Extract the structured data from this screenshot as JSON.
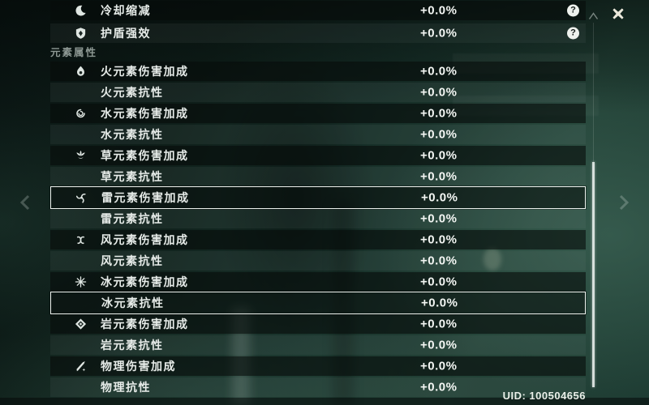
{
  "section_header": "元素属性",
  "rows": [
    {
      "id": "cooldown-reduction",
      "label": "冷却缩减",
      "value": "+0.0%",
      "icon": "cooldown-icon",
      "help": true,
      "shade": "dark",
      "highlighted": false
    },
    {
      "id": "shield-strength",
      "label": "护盾强效",
      "value": "+0.0%",
      "icon": "shield-icon",
      "help": true,
      "shade": "light",
      "highlighted": false
    },
    {
      "id": "pyro-dmg-bonus",
      "label": "火元素伤害加成",
      "value": "+0.0%",
      "icon": "pyro-icon",
      "help": false,
      "shade": "dark",
      "highlighted": false
    },
    {
      "id": "pyro-res",
      "label": "火元素抗性",
      "value": "+0.0%",
      "icon": null,
      "help": false,
      "shade": "light",
      "highlighted": false
    },
    {
      "id": "hydro-dmg-bonus",
      "label": "水元素伤害加成",
      "value": "+0.0%",
      "icon": "hydro-icon",
      "help": false,
      "shade": "dark",
      "highlighted": false
    },
    {
      "id": "hydro-res",
      "label": "水元素抗性",
      "value": "+0.0%",
      "icon": null,
      "help": false,
      "shade": "light",
      "highlighted": false
    },
    {
      "id": "dendro-dmg-bonus",
      "label": "草元素伤害加成",
      "value": "+0.0%",
      "icon": "dendro-icon",
      "help": false,
      "shade": "dark",
      "highlighted": false
    },
    {
      "id": "dendro-res",
      "label": "草元素抗性",
      "value": "+0.0%",
      "icon": null,
      "help": false,
      "shade": "light",
      "highlighted": false
    },
    {
      "id": "electro-dmg-bonus",
      "label": "雷元素伤害加成",
      "value": "+0.0%",
      "icon": "electro-icon",
      "help": false,
      "shade": "dark",
      "highlighted": true
    },
    {
      "id": "electro-res",
      "label": "雷元素抗性",
      "value": "+0.0%",
      "icon": null,
      "help": false,
      "shade": "light",
      "highlighted": false
    },
    {
      "id": "anemo-dmg-bonus",
      "label": "风元素伤害加成",
      "value": "+0.0%",
      "icon": "anemo-icon",
      "help": false,
      "shade": "dark",
      "highlighted": false
    },
    {
      "id": "anemo-res",
      "label": "风元素抗性",
      "value": "+0.0%",
      "icon": null,
      "help": false,
      "shade": "light",
      "highlighted": false
    },
    {
      "id": "cryo-dmg-bonus",
      "label": "冰元素伤害加成",
      "value": "+0.0%",
      "icon": "cryo-icon",
      "help": false,
      "shade": "dark",
      "highlighted": false
    },
    {
      "id": "cryo-res",
      "label": "冰元素抗性",
      "value": "+0.0%",
      "icon": null,
      "help": false,
      "shade": "light",
      "highlighted": true
    },
    {
      "id": "geo-dmg-bonus",
      "label": "岩元素伤害加成",
      "value": "+0.0%",
      "icon": "geo-icon",
      "help": false,
      "shade": "dark",
      "highlighted": false
    },
    {
      "id": "geo-res",
      "label": "岩元素抗性",
      "value": "+0.0%",
      "icon": null,
      "help": false,
      "shade": "light",
      "highlighted": false
    },
    {
      "id": "physical-dmg-bonus",
      "label": "物理伤害加成",
      "value": "+0.0%",
      "icon": "physical-icon",
      "help": false,
      "shade": "dark",
      "highlighted": false
    },
    {
      "id": "physical-res",
      "label": "物理抗性",
      "value": "+0.0%",
      "icon": null,
      "help": false,
      "shade": "light",
      "highlighted": false
    }
  ],
  "help_glyph": "?",
  "uid": "UID: 100504656",
  "colors": {
    "background_teal": "#1d3b32",
    "row_dark_overlay": "rgba(7,11,10,0.60)",
    "row_light_overlay": "rgba(150,172,163,0.08)",
    "label_text": "#e7ece9",
    "value_text": "#f3f6f3",
    "section_header_text": "#8d9893",
    "highlight_border": "#edf2ee",
    "close_icon": "#ece9dc"
  }
}
